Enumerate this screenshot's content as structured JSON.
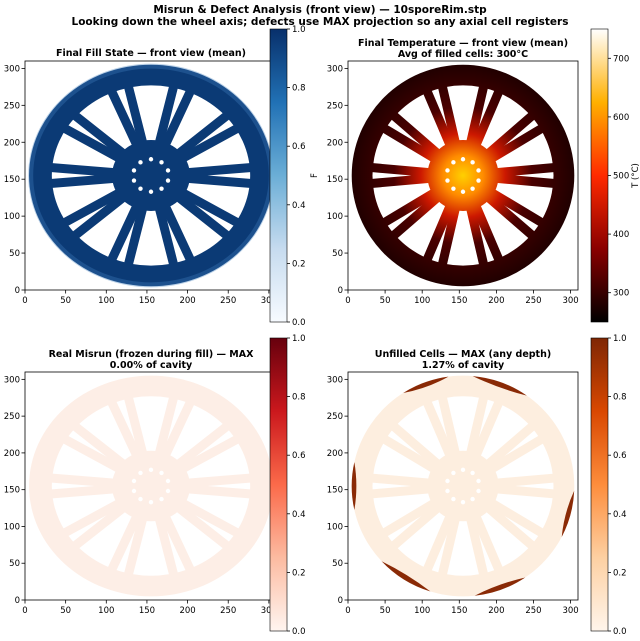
{
  "figure": {
    "title_line1": "Misrun & Defect Analysis (front view) — 10sporeRim.stp",
    "title_line2": "Looking down the wheel axis; defects use MAX projection so any axial cell registers"
  },
  "chart_data": [
    {
      "type": "heatmap",
      "title": "Final Fill State — front view (mean)",
      "subtitle": "",
      "xlim": [
        0,
        310
      ],
      "ylim": [
        0,
        310
      ],
      "xticks": [
        "0",
        "50",
        "100",
        "150",
        "200",
        "250",
        "300"
      ],
      "yticks": [
        "0",
        "50",
        "100",
        "150",
        "200",
        "250",
        "300"
      ],
      "colormap": "Blues",
      "cmap_colors": [
        "#f7fbff",
        "#c6dbef",
        "#6baed6",
        "#2171b5",
        "#08306b"
      ],
      "colorbar_label": "F",
      "colorbar_range": [
        0,
        1.0
      ],
      "colorbar_ticks": [
        "0.0",
        "0.2",
        "0.4",
        "0.6",
        "0.8",
        "1.0"
      ],
      "field": "fill",
      "wheel_color": "#0b3a75",
      "rim_edge_color": "#3f7dbd",
      "edge_defects": false
    },
    {
      "type": "heatmap",
      "title": "Final Temperature — front view (mean)",
      "subtitle": "Avg of filled cells: 300°C",
      "xlim": [
        0,
        310
      ],
      "ylim": [
        0,
        310
      ],
      "xticks": [
        "0",
        "50",
        "100",
        "150",
        "200",
        "250",
        "300"
      ],
      "yticks": [
        "0",
        "50",
        "100",
        "150",
        "200",
        "250",
        "300"
      ],
      "colormap": "hot",
      "cmap_colors": [
        "#000000",
        "#8a0000",
        "#ff2a00",
        "#ffb000",
        "#ffffff"
      ],
      "colorbar_label": "T (°C)",
      "colorbar_range": [
        250,
        750
      ],
      "colorbar_ticks": [
        "300",
        "400",
        "500",
        "600",
        "700"
      ],
      "colorbar_tick_values": [
        300,
        400,
        500,
        600,
        700
      ],
      "field": "temperature",
      "wheel_color": "#260000",
      "hub_temperature_max": 700,
      "avg_filled_temperature": 300,
      "edge_defects": false
    },
    {
      "type": "heatmap",
      "title": "Real Misrun (frozen during fill) — MAX",
      "subtitle": "0.00% of cavity",
      "xlim": [
        0,
        310
      ],
      "ylim": [
        0,
        310
      ],
      "xticks": [
        "0",
        "50",
        "100",
        "150",
        "200",
        "250",
        "300"
      ],
      "yticks": [
        "0",
        "50",
        "100",
        "150",
        "200",
        "250",
        "300"
      ],
      "colormap": "Reds",
      "cmap_colors": [
        "#fff5f0",
        "#fcbba1",
        "#fb6a4a",
        "#cb181d",
        "#67000d"
      ],
      "colorbar_label": "",
      "colorbar_range": [
        0,
        1.0
      ],
      "colorbar_ticks": [
        "0.0",
        "0.2",
        "0.4",
        "0.6",
        "0.8",
        "1.0"
      ],
      "field": "misrun",
      "misrun_percent": 0.0,
      "wheel_color": "#fdeee6",
      "edge_defects": false
    },
    {
      "type": "heatmap",
      "title": "Unfilled Cells — MAX (any depth)",
      "subtitle": "1.27% of cavity",
      "xlim": [
        0,
        310
      ],
      "ylim": [
        0,
        310
      ],
      "xticks": [
        "0",
        "50",
        "100",
        "150",
        "200",
        "250",
        "300"
      ],
      "yticks": [
        "0",
        "50",
        "100",
        "150",
        "200",
        "250",
        "300"
      ],
      "colormap": "Oranges",
      "cmap_colors": [
        "#fff5eb",
        "#fdd0a2",
        "#fd8d3c",
        "#d94801",
        "#7f2704"
      ],
      "colorbar_label": "",
      "colorbar_range": [
        0,
        1.0
      ],
      "colorbar_ticks": [
        "0.0",
        "0.2",
        "0.4",
        "0.6",
        "0.8",
        "1.0"
      ],
      "field": "unfilled",
      "unfilled_percent": 1.27,
      "wheel_color": "#fdeedf",
      "defect_color": "#8a2a06",
      "edge_defects": true
    }
  ]
}
